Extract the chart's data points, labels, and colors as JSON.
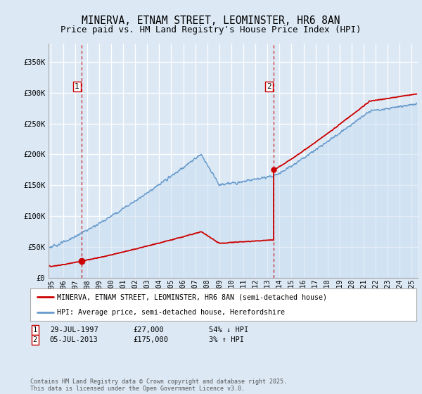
{
  "title": "MINERVA, ETNAM STREET, LEOMINSTER, HR6 8AN",
  "subtitle": "Price paid vs. HM Land Registry's House Price Index (HPI)",
  "background_color": "#dce9f5",
  "plot_bg_color": "#dce9f5",
  "red_line_color": "#cc0000",
  "blue_line_color": "#6699cc",
  "blue_fill_color": "#dce9f5",
  "ylim": [
    0,
    380000
  ],
  "yticks": [
    0,
    50000,
    100000,
    150000,
    200000,
    250000,
    300000,
    350000
  ],
  "ytick_labels": [
    "£0",
    "£50K",
    "£100K",
    "£150K",
    "£200K",
    "£250K",
    "£300K",
    "£350K"
  ],
  "xlim_start": 1994.8,
  "xlim_end": 2025.5,
  "xtick_years": [
    1995,
    1996,
    1997,
    1998,
    1999,
    2000,
    2001,
    2002,
    2003,
    2004,
    2005,
    2006,
    2007,
    2008,
    2009,
    2010,
    2011,
    2012,
    2013,
    2014,
    2015,
    2016,
    2017,
    2018,
    2019,
    2020,
    2021,
    2022,
    2023,
    2024,
    2025
  ],
  "sale1_x": 1997.57,
  "sale1_y": 27000,
  "sale2_x": 2013.51,
  "sale2_y": 175000,
  "legend_line1": "MINERVA, ETNAM STREET, LEOMINSTER, HR6 8AN (semi-detached house)",
  "legend_line2": "HPI: Average price, semi-detached house, Herefordshire",
  "footer": "Contains HM Land Registry data © Crown copyright and database right 2025.\nThis data is licensed under the Open Government Licence v3.0.",
  "title_fontsize": 10.5,
  "subtitle_fontsize": 9,
  "tick_fontsize": 7.5
}
